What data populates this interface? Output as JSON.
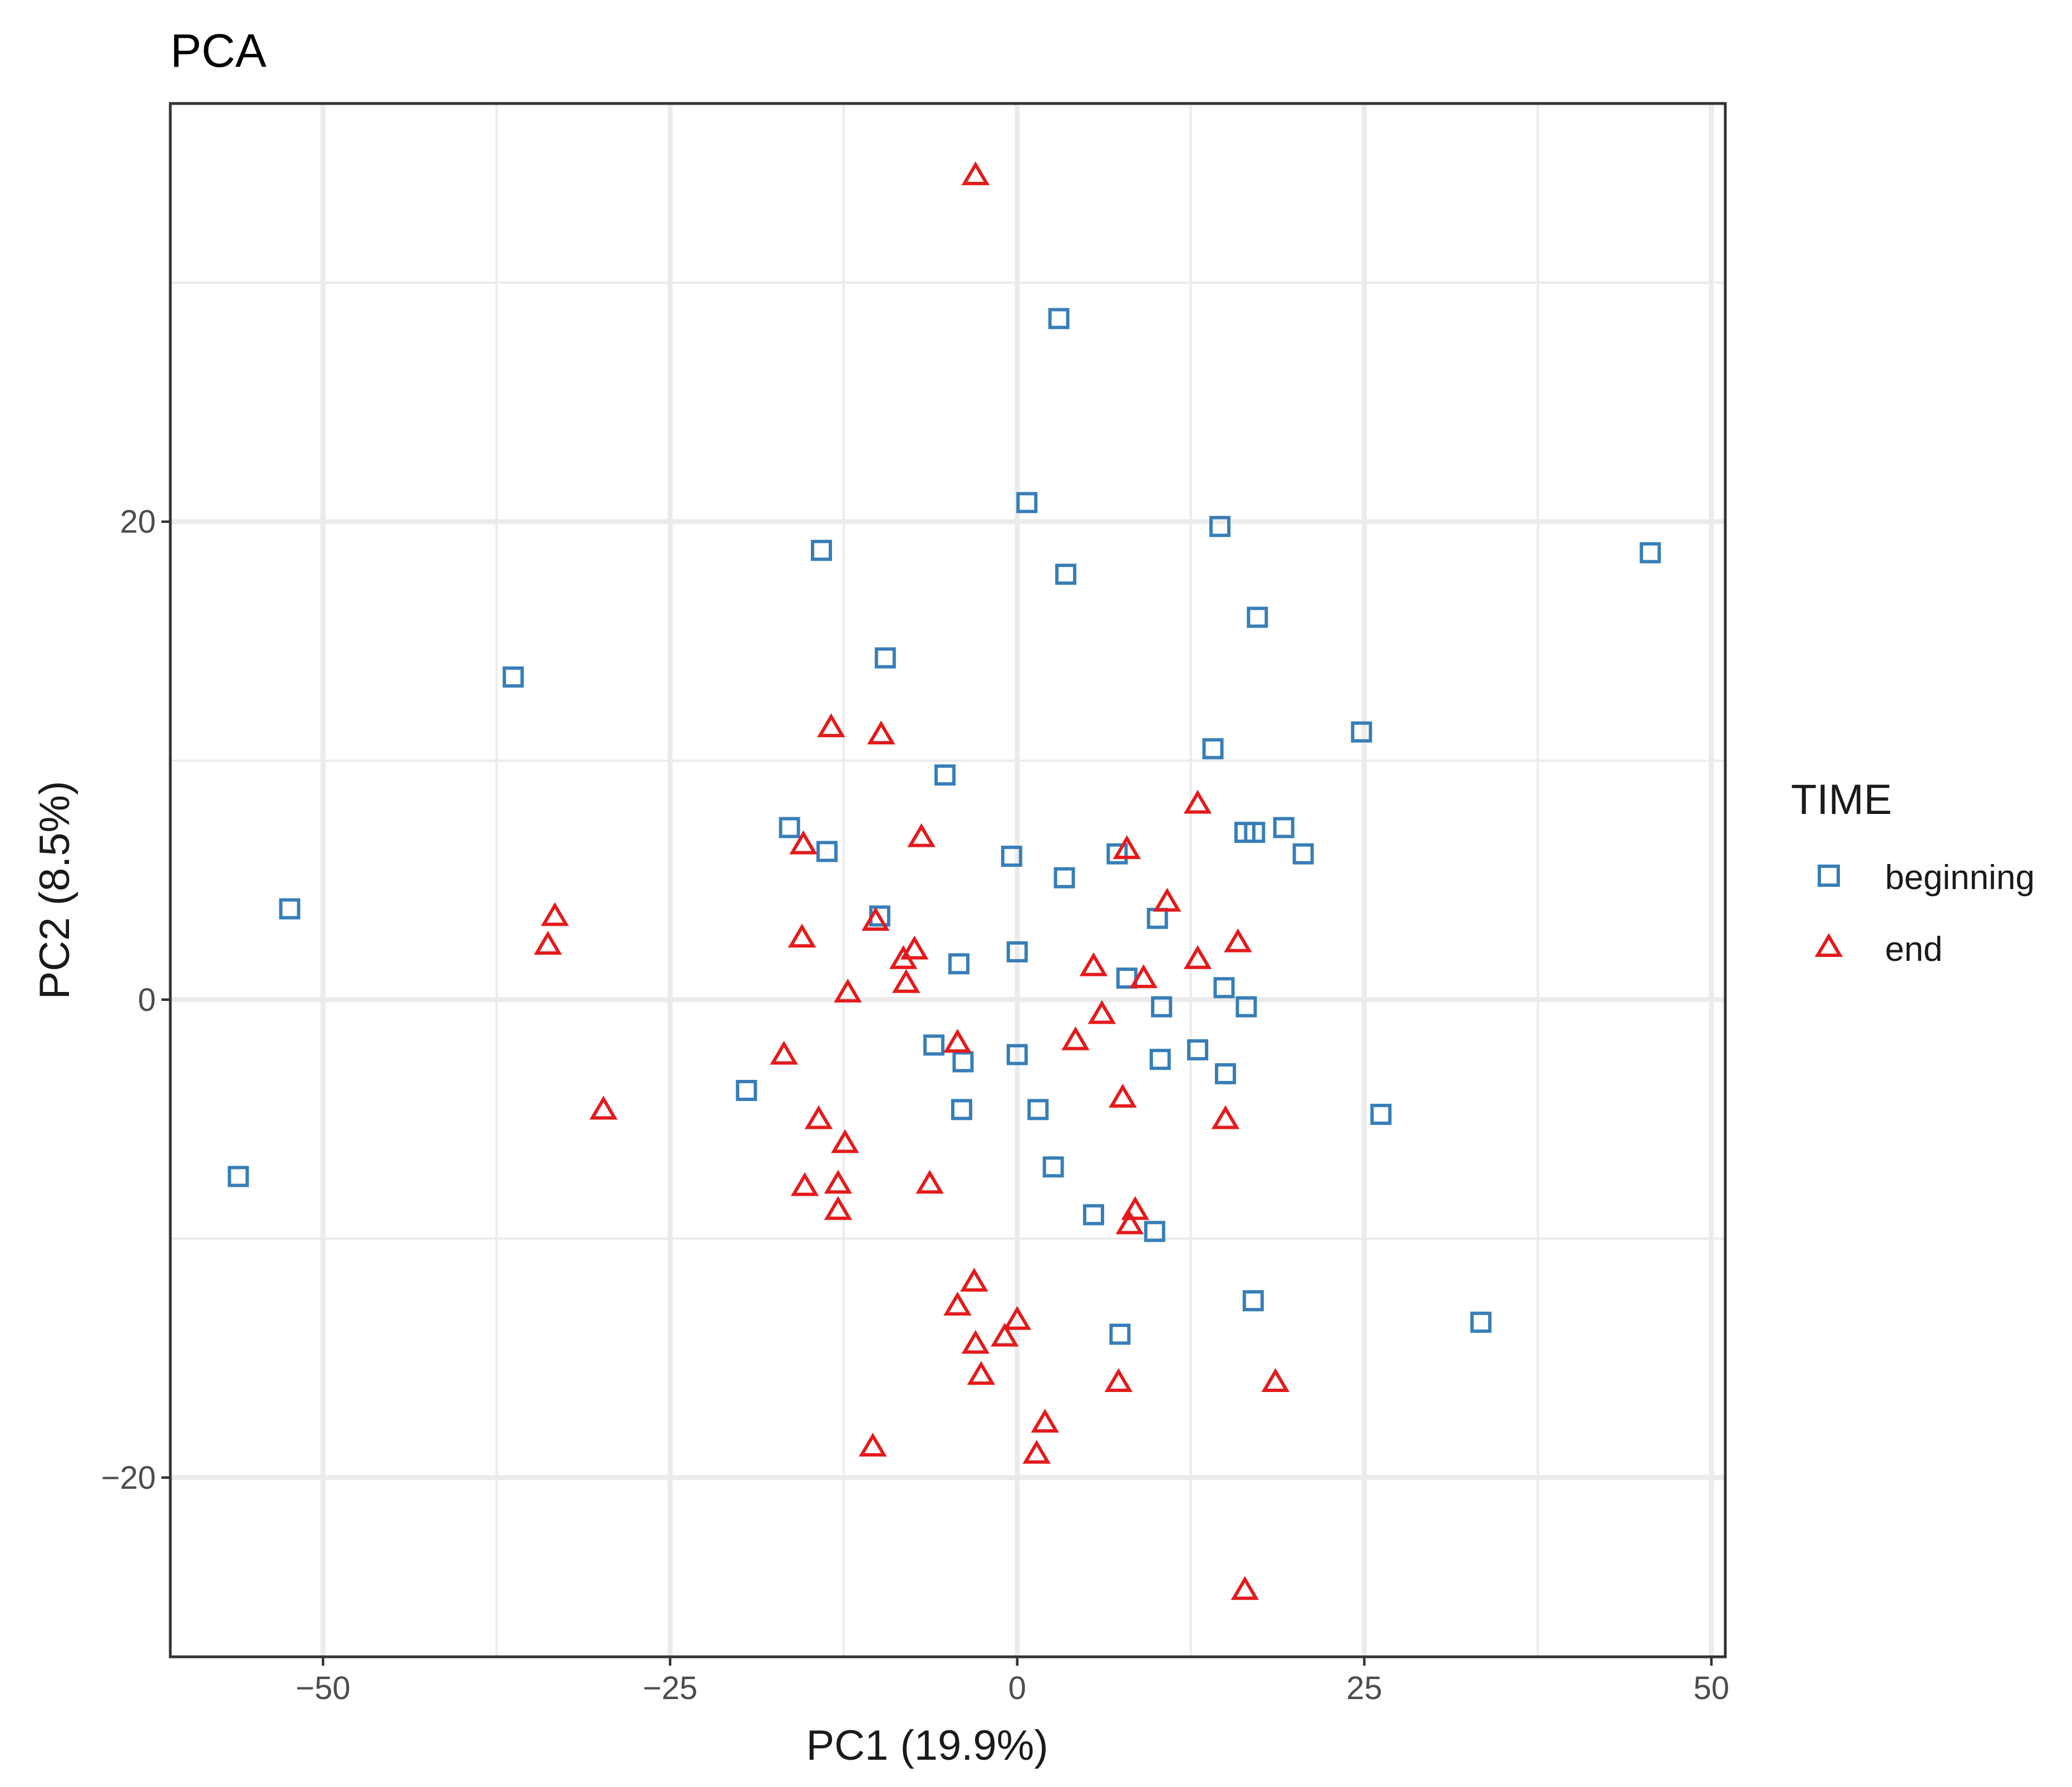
{
  "chart_data": {
    "type": "scatter",
    "title": "PCA",
    "xlabel": "PC1 (19.9%)",
    "ylabel": "PC2 (8.5%)",
    "xlim": [
      -61,
      51
    ],
    "ylim": [
      -27.5,
      37.5
    ],
    "x_ticks": [
      -50,
      -25,
      0,
      25,
      50
    ],
    "x_tick_labels": [
      "−50",
      "−25",
      "0",
      "25",
      "50"
    ],
    "y_ticks": [
      -20,
      0,
      20
    ],
    "y_tick_labels": [
      "−20",
      "0",
      "20"
    ],
    "x_minor_ticks": [
      -37.5,
      -12.5,
      12.5,
      37.5
    ],
    "y_minor_ticks": [
      -10,
      10,
      30
    ],
    "grid": true,
    "legend": {
      "title": "TIME",
      "placement": "right",
      "entries": [
        {
          "label": "beginning",
          "shape": "square",
          "color": "#377EB8"
        },
        {
          "label": "end",
          "shape": "triangle",
          "color": "#E41A1C"
        }
      ]
    },
    "series": [
      {
        "name": "beginning",
        "shape": "square",
        "color": "#377EB8",
        "points": [
          [
            3,
            28.5
          ],
          [
            0.7,
            20.8
          ],
          [
            14.6,
            19.8
          ],
          [
            45.6,
            18.7
          ],
          [
            -14.1,
            18.8
          ],
          [
            3.5,
            17.8
          ],
          [
            17.3,
            16.0
          ],
          [
            -9.5,
            14.3
          ],
          [
            -36.3,
            13.5
          ],
          [
            24.8,
            11.2
          ],
          [
            14.1,
            10.5
          ],
          [
            -5.2,
            9.4
          ],
          [
            -16.4,
            7.2
          ],
          [
            16.4,
            7.0
          ],
          [
            17.1,
            7.0
          ],
          [
            19.2,
            7.2
          ],
          [
            -13.7,
            6.2
          ],
          [
            7.2,
            6.1
          ],
          [
            -0.4,
            6.0
          ],
          [
            20.6,
            6.1
          ],
          [
            3.4,
            5.1
          ],
          [
            -9.9,
            3.5
          ],
          [
            10.1,
            3.4
          ],
          [
            -52.4,
            3.8
          ],
          [
            -4.2,
            1.5
          ],
          [
            0,
            2.0
          ],
          [
            7.9,
            0.9
          ],
          [
            14.9,
            0.5
          ],
          [
            10.4,
            -0.3
          ],
          [
            16.5,
            -0.3
          ],
          [
            -6.0,
            -1.9
          ],
          [
            -3.9,
            -2.6
          ],
          [
            0,
            -2.3
          ],
          [
            13.0,
            -2.1
          ],
          [
            10.3,
            -2.5
          ],
          [
            15.0,
            -3.1
          ],
          [
            -19.5,
            -3.8
          ],
          [
            -4.0,
            -4.6
          ],
          [
            1.5,
            -4.6
          ],
          [
            26.2,
            -4.8
          ],
          [
            -56.1,
            -7.4
          ],
          [
            2.6,
            -7.0
          ],
          [
            5.5,
            -9.0
          ],
          [
            9.9,
            -9.7
          ],
          [
            17.0,
            -12.6
          ],
          [
            33.4,
            -13.5
          ],
          [
            7.4,
            -14.0
          ]
        ]
      },
      {
        "name": "end",
        "shape": "triangle",
        "color": "#E41A1C",
        "points": [
          [
            -3,
            34.5
          ],
          [
            -13.4,
            11.4
          ],
          [
            -9.8,
            11.1
          ],
          [
            13.0,
            8.2
          ],
          [
            -15.4,
            6.5
          ],
          [
            -6.9,
            6.8
          ],
          [
            7.9,
            6.3
          ],
          [
            -33.3,
            3.5
          ],
          [
            -33.8,
            2.3
          ],
          [
            10.8,
            4.1
          ],
          [
            -10.2,
            3.3
          ],
          [
            -15.5,
            2.6
          ],
          [
            15.9,
            2.4
          ],
          [
            -7.4,
            2.1
          ],
          [
            -8.2,
            1.7
          ],
          [
            13.0,
            1.7
          ],
          [
            5.5,
            1.4
          ],
          [
            -8.0,
            0.7
          ],
          [
            9.1,
            0.9
          ],
          [
            -12.2,
            0.3
          ],
          [
            6.1,
            -0.6
          ],
          [
            -4.3,
            -1.8
          ],
          [
            4.2,
            -1.7
          ],
          [
            -16.8,
            -2.3
          ],
          [
            7.6,
            -4.1
          ],
          [
            -29.8,
            -4.6
          ],
          [
            -14.3,
            -5.0
          ],
          [
            15.0,
            -5.0
          ],
          [
            -12.4,
            -6.0
          ],
          [
            -6.3,
            -7.7
          ],
          [
            -15.3,
            -7.8
          ],
          [
            -12.9,
            -7.7
          ],
          [
            -12.9,
            -8.8
          ],
          [
            8.5,
            -8.8
          ],
          [
            8.1,
            -9.4
          ],
          [
            -3.1,
            -11.8
          ],
          [
            -4.3,
            -12.8
          ],
          [
            0,
            -13.4
          ],
          [
            -3.0,
            -14.4
          ],
          [
            -0.9,
            -14.1
          ],
          [
            -2.6,
            -15.7
          ],
          [
            7.3,
            -16.0
          ],
          [
            18.6,
            -16.0
          ],
          [
            2.0,
            -17.7
          ],
          [
            -10.4,
            -18.7
          ],
          [
            1.4,
            -19.0
          ],
          [
            16.4,
            -24.7
          ]
        ]
      }
    ]
  }
}
